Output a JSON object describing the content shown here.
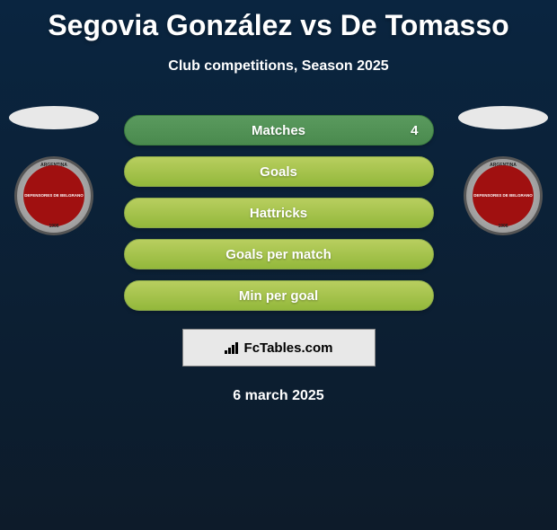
{
  "title": "Segovia González vs De Tomasso",
  "subtitle": "Club competitions, Season 2025",
  "date": "6 march 2025",
  "watermark": "FcTables.com",
  "rows": [
    {
      "label": "Matches",
      "value": "4",
      "highlighted": true
    },
    {
      "label": "Goals",
      "value": "",
      "highlighted": false
    },
    {
      "label": "Hattricks",
      "value": "",
      "highlighted": false
    },
    {
      "label": "Goals per match",
      "value": "",
      "highlighted": false
    },
    {
      "label": "Min per goal",
      "value": "",
      "highlighted": false
    }
  ],
  "badge": {
    "arc_top": "ARGENTINA",
    "center": "DEFENSORES DE BELGRANO",
    "year": "1906",
    "arc_bottom": "FOOTBALL CLUB"
  },
  "styling": {
    "bg_gradient_top": "#0a2540",
    "bg_gradient_bottom": "#0d1b2a",
    "title_color": "#ffffff",
    "title_fontsize": 32,
    "subtitle_fontsize": 16,
    "pill_width": 345,
    "pill_height": 34,
    "pill_bg_top": "#b8ce5f",
    "pill_bg_bottom": "#93b83b",
    "pill_border": "#8aa84a",
    "pill_highlight_bg_top": "#5a9a5e",
    "pill_highlight_bg_bottom": "#4a8a4e",
    "pill_label_fontsize": 15,
    "badge_outer_diameter": 88,
    "badge_inner_diameter": 68,
    "badge_inner_bg": "#a01010",
    "silhouette_bg": "#e8e8e8",
    "watermark_box_w": 215,
    "watermark_box_h": 42,
    "watermark_bg": "#e8e8e8",
    "date_fontsize": 16
  }
}
